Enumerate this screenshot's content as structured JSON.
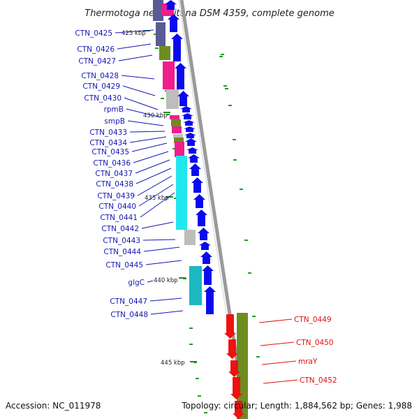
{
  "title": "Thermotoga neapolitana DSM 4359, complete genome",
  "footer": {
    "accession": "Accession: NC_011978",
    "summary": "Topology: circular; Length: 1,884,562 bp; Genes: 1,988"
  },
  "kbp_ticks": [
    "425 kbp",
    "430 kbp",
    "435 kbp",
    "440 kbp",
    "445 kbp"
  ],
  "gene_labels_left": [
    "CTN_0425",
    "CTN_0426",
    "CTN_0427",
    "CTN_0428",
    "CTN_0429",
    "CTN_0430",
    "rpmB",
    "smpB",
    "CTN_0433",
    "CTN_0434",
    "CTN_0435",
    "CTN_0436",
    "CTN_0437",
    "CTN_0438",
    "CTN_0439",
    "CTN_0440",
    "CTN_0441",
    "CTN_0442",
    "CTN_0443",
    "CTN_0444",
    "CTN_0445",
    "glgC",
    "CTN_0447",
    "CTN_0448"
  ],
  "gene_labels_right": [
    "CTN_0449",
    "CTN_0450",
    "mraY",
    "CTN_0452"
  ],
  "colors": {
    "forward_strand": "#0a0aee",
    "reverse_strand": "#ee1111",
    "backbone": "#9a9a9a",
    "cog_magenta": "#ee1e8c",
    "cog_olive": "#6e8c20",
    "cog_cyan": "#22e6ee",
    "cog_teal": "#1bb8c2",
    "cog_grey": "#bdbdbd",
    "cog_slate": "#5a5a96",
    "label_left": "#1515b5",
    "label_right": "#e01010",
    "gc_marks": "#22a022"
  }
}
